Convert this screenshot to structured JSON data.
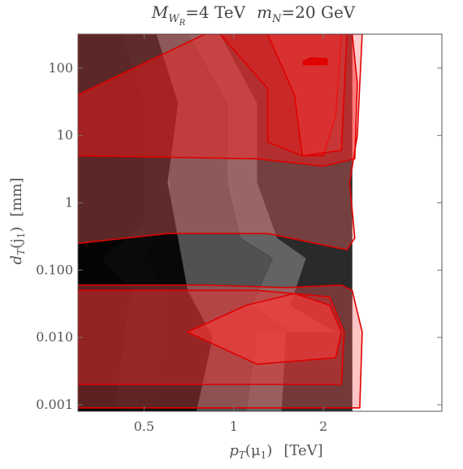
{
  "chart_data": {
    "type": "contour",
    "title": "M_{W_R}=4 TeV   m_N=20 GeV",
    "title_parts": {
      "mw_symbol": "M",
      "mw_sub": "W",
      "mw_subsub": "R",
      "mw_value": "=4 TeV",
      "mn_symbol": "m",
      "mn_sub": "N",
      "mn_value": "=20 GeV"
    },
    "xlabel": "p_T(μ_1)   [TeV]",
    "xlabel_parts": {
      "symbol": "p",
      "sub": "T",
      "arg_open": "(μ",
      "arg_sub": "1",
      "arg_close": ")",
      "unit": "[TeV]"
    },
    "ylabel": "d_T(j_1)   [mm]",
    "ylabel_parts": {
      "symbol": "d",
      "sub": "T",
      "arg_open": "(j",
      "arg_sub": "1",
      "arg_close": ")",
      "unit": "[mm]"
    },
    "x_scale": "log",
    "y_scale": "log",
    "xlim": [
      0.3,
      5.0
    ],
    "ylim": [
      0.0008,
      320
    ],
    "xticks": [
      {
        "value": 0.5,
        "label": "0.5"
      },
      {
        "value": 1,
        "label": "1"
      },
      {
        "value": 2,
        "label": "2"
      }
    ],
    "yticks": [
      {
        "value": 0.001,
        "label": "0.001"
      },
      {
        "value": 0.01,
        "label": "0.010"
      },
      {
        "value": 0.1,
        "label": "0.100"
      },
      {
        "value": 1,
        "label": "1"
      },
      {
        "value": 10,
        "label": "10"
      },
      {
        "value": 100,
        "label": "100"
      }
    ],
    "grid": false,
    "legend": "none",
    "colors": {
      "gray_base": "#000000",
      "red_base": "#ff1a1a",
      "red_edge": "#e00000"
    },
    "regions": [
      {
        "group": "gray",
        "level": 1,
        "color": "#2a2a2a",
        "opacity": 1.0,
        "points": [
          [
            0.3,
            0.0008
          ],
          [
            2.5,
            0.0008
          ],
          [
            2.5,
            320
          ],
          [
            0.3,
            320
          ]
        ]
      },
      {
        "group": "gray",
        "level": 2,
        "color": "#8a8a8a",
        "opacity": 0.6,
        "points": [
          [
            0.42,
            0.0008
          ],
          [
            1.45,
            0.0008
          ],
          [
            1.5,
            0.012
          ],
          [
            2.2,
            0.012
          ],
          [
            1.55,
            0.03
          ],
          [
            1.75,
            0.15
          ],
          [
            1.4,
            0.3
          ],
          [
            1.2,
            2
          ],
          [
            1.2,
            30
          ],
          [
            0.9,
            320
          ],
          [
            0.42,
            320
          ],
          [
            0.5,
            30
          ],
          [
            0.5,
            0.5
          ],
          [
            0.36,
            0.15
          ],
          [
            0.45,
            0.05
          ],
          [
            0.4,
            0.001
          ]
        ]
      },
      {
        "group": "gray",
        "level": 3,
        "color": "#3c3c3c",
        "opacity": 0.45,
        "points": [
          [
            0.55,
            0.0008
          ],
          [
            1.1,
            0.0008
          ],
          [
            1.2,
            0.012
          ],
          [
            1.55,
            0.012
          ],
          [
            1.15,
            0.03
          ],
          [
            1.35,
            0.15
          ],
          [
            1.05,
            0.3
          ],
          [
            0.95,
            2
          ],
          [
            0.95,
            30
          ],
          [
            0.7,
            320
          ],
          [
            0.55,
            320
          ],
          [
            0.6,
            30
          ],
          [
            0.62,
            0.5
          ],
          [
            0.5,
            0.15
          ],
          [
            0.6,
            0.05
          ],
          [
            0.55,
            0.001
          ]
        ]
      },
      {
        "group": "gray",
        "level": 4,
        "color": "#000000",
        "opacity": 0.9,
        "points": [
          [
            0.3,
            0.0008
          ],
          [
            0.75,
            0.0008
          ],
          [
            0.85,
            0.01
          ],
          [
            0.7,
            0.05
          ],
          [
            0.65,
            0.3
          ],
          [
            0.6,
            2
          ],
          [
            0.65,
            30
          ],
          [
            0.55,
            320
          ],
          [
            0.3,
            320
          ]
        ]
      },
      {
        "group": "red",
        "level": 1,
        "color": "#ff5a5a",
        "opacity": 0.35,
        "points": [
          [
            0.3,
            0.0009
          ],
          [
            2.65,
            0.0009
          ],
          [
            2.7,
            0.012
          ],
          [
            2.5,
            0.05
          ],
          [
            2.3,
            0.06
          ],
          [
            1.5,
            0.055
          ],
          [
            0.8,
            0.06
          ],
          [
            0.3,
            0.06
          ]
        ]
      },
      {
        "group": "red",
        "level": 2,
        "color": "#ff2a2a",
        "opacity": 0.35,
        "points": [
          [
            0.3,
            0.002
          ],
          [
            2.3,
            0.002
          ],
          [
            2.35,
            0.012
          ],
          [
            2.1,
            0.04
          ],
          [
            1.2,
            0.05
          ],
          [
            0.3,
            0.05
          ]
        ]
      },
      {
        "group": "red",
        "level": 3,
        "color": "#ff3a3a",
        "opacity": 0.55,
        "points": [
          [
            0.7,
            0.012
          ],
          [
            1.2,
            0.004
          ],
          [
            2.2,
            0.005
          ],
          [
            2.3,
            0.012
          ],
          [
            2.1,
            0.03
          ],
          [
            1.6,
            0.045
          ],
          [
            1.1,
            0.03
          ]
        ]
      },
      {
        "group": "red",
        "level": 4,
        "color": "#ff6a6a",
        "opacity": 0.35,
        "points": [
          [
            0.3,
            0.25
          ],
          [
            0.6,
            0.35
          ],
          [
            1.3,
            0.35
          ],
          [
            2.4,
            0.2
          ],
          [
            2.55,
            0.3
          ],
          [
            2.45,
            2
          ],
          [
            2.6,
            10
          ],
          [
            2.7,
            320
          ],
          [
            0.3,
            320
          ]
        ]
      },
      {
        "group": "red",
        "level": 5,
        "color": "#ff1a1a",
        "opacity": 0.45,
        "points": [
          [
            0.3,
            5
          ],
          [
            1.2,
            4.5
          ],
          [
            2.0,
            3.5
          ],
          [
            2.55,
            4.5
          ],
          [
            2.6,
            60
          ],
          [
            2.5,
            320
          ],
          [
            0.8,
            320
          ],
          [
            0.3,
            40
          ]
        ]
      },
      {
        "group": "red",
        "level": 6,
        "color": "#ff1a1a",
        "opacity": 0.3,
        "points": [
          [
            0.9,
            320
          ],
          [
            1.3,
            50
          ],
          [
            1.3,
            8
          ],
          [
            1.7,
            5
          ],
          [
            2.0,
            5
          ],
          [
            2.2,
            20
          ],
          [
            2.3,
            320
          ]
        ]
      },
      {
        "group": "red",
        "level": 7,
        "color": "#ff4a4a",
        "opacity": 0.3,
        "points": [
          [
            1.3,
            320
          ],
          [
            1.6,
            40
          ],
          [
            1.7,
            5
          ],
          [
            2.3,
            6
          ],
          [
            2.4,
            320
          ]
        ]
      },
      {
        "group": "red",
        "level": 8,
        "color": "#e00000",
        "opacity": 0.9,
        "points": [
          [
            1.72,
            125
          ],
          [
            1.82,
            140
          ],
          [
            2.05,
            135
          ],
          [
            2.05,
            115
          ],
          [
            1.72,
            115
          ]
        ]
      }
    ]
  }
}
